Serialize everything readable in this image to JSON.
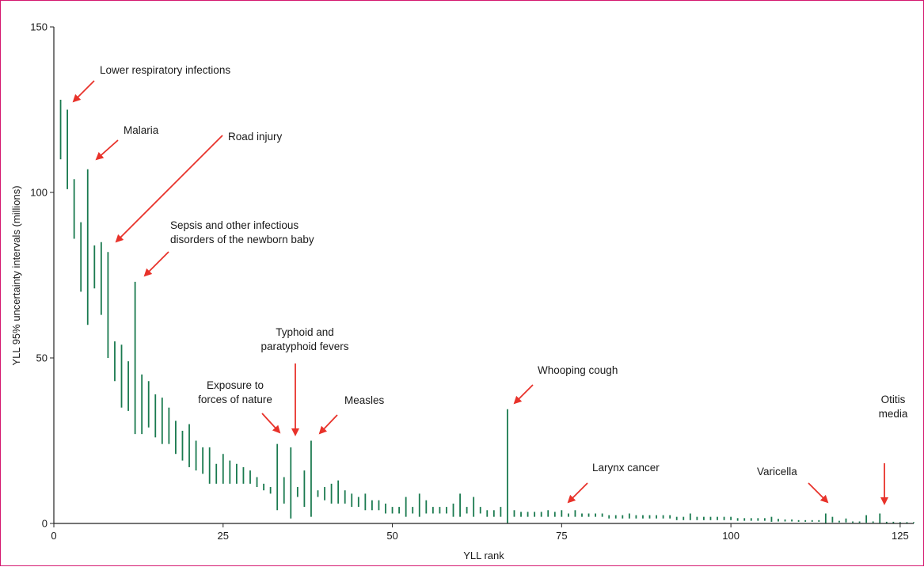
{
  "chart_data": {
    "type": "uncertainty-interval",
    "xlabel": "YLL rank",
    "ylabel": "YLL 95% uncertainty intervals (millions)",
    "xlim": [
      0,
      127
    ],
    "ylim": [
      0,
      150
    ],
    "x_ticks": [
      "0",
      "25",
      "50",
      "75",
      "100",
      "125"
    ],
    "y_ticks": [
      "0",
      "50",
      "100",
      "150"
    ],
    "colors": {
      "interval": "#1a7a4f",
      "arrow": "#e8322a",
      "axis": "#222222",
      "frame": "#d4176f"
    },
    "intervals": [
      {
        "x": 1,
        "low": 110,
        "high": 128
      },
      {
        "x": 2,
        "low": 101,
        "high": 125
      },
      {
        "x": 3,
        "low": 86,
        "high": 104
      },
      {
        "x": 4,
        "low": 70,
        "high": 91
      },
      {
        "x": 5,
        "low": 60,
        "high": 107
      },
      {
        "x": 6,
        "low": 71,
        "high": 84
      },
      {
        "x": 7,
        "low": 63,
        "high": 85
      },
      {
        "x": 8,
        "low": 50,
        "high": 82
      },
      {
        "x": 9,
        "low": 43,
        "high": 55
      },
      {
        "x": 10,
        "low": 35,
        "high": 54
      },
      {
        "x": 11,
        "low": 34,
        "high": 49
      },
      {
        "x": 12,
        "low": 27,
        "high": 73
      },
      {
        "x": 13,
        "low": 27,
        "high": 45
      },
      {
        "x": 14,
        "low": 29,
        "high": 43
      },
      {
        "x": 15,
        "low": 26,
        "high": 39
      },
      {
        "x": 16,
        "low": 24,
        "high": 38
      },
      {
        "x": 17,
        "low": 24,
        "high": 35
      },
      {
        "x": 18,
        "low": 21,
        "high": 31
      },
      {
        "x": 19,
        "low": 19,
        "high": 28
      },
      {
        "x": 20,
        "low": 17,
        "high": 30
      },
      {
        "x": 21,
        "low": 16,
        "high": 25
      },
      {
        "x": 22,
        "low": 15,
        "high": 23
      },
      {
        "x": 23,
        "low": 12,
        "high": 23
      },
      {
        "x": 24,
        "low": 12,
        "high": 18
      },
      {
        "x": 25,
        "low": 12,
        "high": 21
      },
      {
        "x": 26,
        "low": 12,
        "high": 19
      },
      {
        "x": 27,
        "low": 12,
        "high": 18
      },
      {
        "x": 28,
        "low": 12,
        "high": 17
      },
      {
        "x": 29,
        "low": 12,
        "high": 16
      },
      {
        "x": 30,
        "low": 11,
        "high": 14
      },
      {
        "x": 31,
        "low": 10,
        "high": 12
      },
      {
        "x": 32,
        "low": 9,
        "high": 11
      },
      {
        "x": 33,
        "low": 4,
        "high": 24
      },
      {
        "x": 34,
        "low": 6,
        "high": 14
      },
      {
        "x": 35,
        "low": 1.5,
        "high": 23
      },
      {
        "x": 36,
        "low": 8,
        "high": 11
      },
      {
        "x": 37,
        "low": 5,
        "high": 16
      },
      {
        "x": 38,
        "low": 2,
        "high": 25
      },
      {
        "x": 39,
        "low": 8,
        "high": 10
      },
      {
        "x": 40,
        "low": 7,
        "high": 11
      },
      {
        "x": 41,
        "low": 6,
        "high": 12
      },
      {
        "x": 42,
        "low": 6,
        "high": 13
      },
      {
        "x": 43,
        "low": 6,
        "high": 10
      },
      {
        "x": 44,
        "low": 5,
        "high": 9
      },
      {
        "x": 45,
        "low": 5,
        "high": 8
      },
      {
        "x": 46,
        "low": 4,
        "high": 9
      },
      {
        "x": 47,
        "low": 4,
        "high": 7
      },
      {
        "x": 48,
        "low": 4,
        "high": 7
      },
      {
        "x": 49,
        "low": 3,
        "high": 6
      },
      {
        "x": 50,
        "low": 3,
        "high": 5
      },
      {
        "x": 51,
        "low": 3,
        "high": 5
      },
      {
        "x": 52,
        "low": 2,
        "high": 8
      },
      {
        "x": 53,
        "low": 3,
        "high": 5
      },
      {
        "x": 54,
        "low": 2,
        "high": 9
      },
      {
        "x": 55,
        "low": 3,
        "high": 7
      },
      {
        "x": 56,
        "low": 3,
        "high": 5
      },
      {
        "x": 57,
        "low": 3,
        "high": 5
      },
      {
        "x": 58,
        "low": 3,
        "high": 5
      },
      {
        "x": 59,
        "low": 2,
        "high": 6
      },
      {
        "x": 60,
        "low": 2,
        "high": 9
      },
      {
        "x": 61,
        "low": 3,
        "high": 5
      },
      {
        "x": 62,
        "low": 2,
        "high": 8
      },
      {
        "x": 63,
        "low": 3,
        "high": 5
      },
      {
        "x": 64,
        "low": 2,
        "high": 4
      },
      {
        "x": 65,
        "low": 2,
        "high": 4
      },
      {
        "x": 66,
        "low": 2,
        "high": 5
      },
      {
        "x": 67,
        "low": 0,
        "high": 34.5
      },
      {
        "x": 68,
        "low": 2,
        "high": 4
      },
      {
        "x": 69,
        "low": 2,
        "high": 3.5
      },
      {
        "x": 70,
        "low": 2,
        "high": 3.5
      },
      {
        "x": 71,
        "low": 2,
        "high": 3.5
      },
      {
        "x": 72,
        "low": 2,
        "high": 3.5
      },
      {
        "x": 73,
        "low": 2,
        "high": 4
      },
      {
        "x": 74,
        "low": 2,
        "high": 3.5
      },
      {
        "x": 75,
        "low": 2,
        "high": 4
      },
      {
        "x": 76,
        "low": 2,
        "high": 3
      },
      {
        "x": 77,
        "low": 2,
        "high": 4
      },
      {
        "x": 78,
        "low": 2,
        "high": 3
      },
      {
        "x": 79,
        "low": 2,
        "high": 3
      },
      {
        "x": 80,
        "low": 2,
        "high": 3
      },
      {
        "x": 81,
        "low": 2,
        "high": 3
      },
      {
        "x": 82,
        "low": 1.5,
        "high": 2.5
      },
      {
        "x": 83,
        "low": 1.5,
        "high": 2.5
      },
      {
        "x": 84,
        "low": 1.5,
        "high": 2.5
      },
      {
        "x": 85,
        "low": 1.5,
        "high": 3
      },
      {
        "x": 86,
        "low": 1.5,
        "high": 2.5
      },
      {
        "x": 87,
        "low": 1.5,
        "high": 2.5
      },
      {
        "x": 88,
        "low": 1.5,
        "high": 2.5
      },
      {
        "x": 89,
        "low": 1.5,
        "high": 2.5
      },
      {
        "x": 90,
        "low": 1.5,
        "high": 2.5
      },
      {
        "x": 91,
        "low": 1.5,
        "high": 2.5
      },
      {
        "x": 92,
        "low": 1,
        "high": 2
      },
      {
        "x": 93,
        "low": 1,
        "high": 2
      },
      {
        "x": 94,
        "low": 1,
        "high": 3
      },
      {
        "x": 95,
        "low": 1,
        "high": 2
      },
      {
        "x": 96,
        "low": 1,
        "high": 2
      },
      {
        "x": 97,
        "low": 1,
        "high": 2
      },
      {
        "x": 98,
        "low": 1,
        "high": 2
      },
      {
        "x": 99,
        "low": 1,
        "high": 2
      },
      {
        "x": 100,
        "low": 1,
        "high": 2
      },
      {
        "x": 101,
        "low": 0.8,
        "high": 1.6
      },
      {
        "x": 102,
        "low": 0.8,
        "high": 1.6
      },
      {
        "x": 103,
        "low": 0.8,
        "high": 1.6
      },
      {
        "x": 104,
        "low": 0.8,
        "high": 1.6
      },
      {
        "x": 105,
        "low": 0.8,
        "high": 1.6
      },
      {
        "x": 106,
        "low": 0.5,
        "high": 2
      },
      {
        "x": 107,
        "low": 0.6,
        "high": 1.4
      },
      {
        "x": 108,
        "low": 0.6,
        "high": 1.2
      },
      {
        "x": 109,
        "low": 0.6,
        "high": 1.2
      },
      {
        "x": 110,
        "low": 0.5,
        "high": 1
      },
      {
        "x": 111,
        "low": 0.5,
        "high": 1
      },
      {
        "x": 112,
        "low": 0.5,
        "high": 1
      },
      {
        "x": 113,
        "low": 0.5,
        "high": 1
      },
      {
        "x": 114,
        "low": 0,
        "high": 3
      },
      {
        "x": 115,
        "low": 0.3,
        "high": 2
      },
      {
        "x": 116,
        "low": 0.3,
        "high": 0.8
      },
      {
        "x": 117,
        "low": 0.3,
        "high": 1.5
      },
      {
        "x": 118,
        "low": 0.2,
        "high": 0.6
      },
      {
        "x": 119,
        "low": 0.2,
        "high": 0.6
      },
      {
        "x": 120,
        "low": 0.2,
        "high": 2.5
      },
      {
        "x": 121,
        "low": 0.2,
        "high": 0.6
      },
      {
        "x": 122,
        "low": 0,
        "high": 3
      },
      {
        "x": 123,
        "low": 0.1,
        "high": 0.5
      },
      {
        "x": 124,
        "low": 0.1,
        "high": 0.5
      },
      {
        "x": 125,
        "low": 0.1,
        "high": 0.4
      },
      {
        "x": 126,
        "low": 0.1,
        "high": 0.4
      },
      {
        "x": 127,
        "low": 0.1,
        "high": 0.4
      }
    ],
    "annotations": [
      {
        "lines": [
          "Lower respiratory infections"
        ],
        "rank": 1,
        "value": 128
      },
      {
        "lines": [
          "Malaria"
        ],
        "rank": 5,
        "value": 107
      },
      {
        "lines": [
          "Road injury"
        ],
        "rank": 8,
        "value": 83
      },
      {
        "lines": [
          "Sepsis and other infectious",
          "disorders of the newborn baby"
        ],
        "rank": 12,
        "value": 73
      },
      {
        "lines": [
          "Exposure to",
          "forces of nature"
        ],
        "rank": 33,
        "value": 26
      },
      {
        "lines": [
          "Typhoid and",
          "paratyphoid fevers"
        ],
        "rank": 35,
        "value": 25
      },
      {
        "lines": [
          "Measles"
        ],
        "rank": 38,
        "value": 26
      },
      {
        "lines": [
          "Whooping cough"
        ],
        "rank": 67,
        "value": 35
      },
      {
        "lines": [
          "Larynx cancer"
        ],
        "rank": 75,
        "value": 5
      },
      {
        "lines": [
          "Varicella"
        ],
        "rank": 114,
        "value": 4
      },
      {
        "lines": [
          "Otitis",
          "media"
        ],
        "rank": 122,
        "value": 4
      }
    ]
  }
}
